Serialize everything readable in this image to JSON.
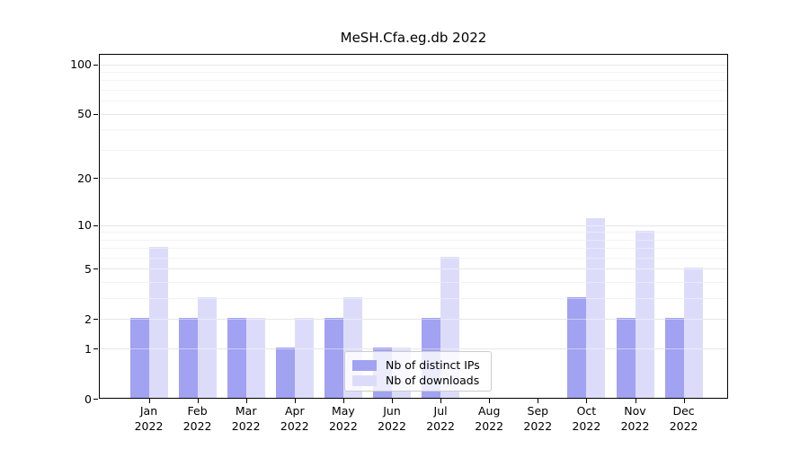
{
  "chart_data": {
    "type": "bar",
    "title": "MeSH.Cfa.eg.db 2022",
    "categories": [
      "Jan 2022",
      "Feb 2022",
      "Mar 2022",
      "Apr 2022",
      "May 2022",
      "Jun 2022",
      "Jul 2022",
      "Aug 2022",
      "Sep 2022",
      "Oct 2022",
      "Nov 2022",
      "Dec 2022"
    ],
    "series": [
      {
        "name": "Nb of distinct IPs",
        "color": "#a2a2f2",
        "values": [
          2,
          2,
          2,
          1,
          2,
          1,
          2,
          0,
          0,
          3,
          2,
          2
        ]
      },
      {
        "name": "Nb of downloads",
        "color": "#dcdcfa",
        "values": [
          7,
          3,
          2,
          2,
          3,
          1,
          6,
          0,
          0,
          11,
          9,
          5
        ]
      }
    ],
    "y_axis": {
      "scale": "log10(1+v)",
      "major_ticks": [
        0,
        1,
        2,
        5,
        10,
        20,
        50,
        100
      ],
      "minor_gridlines": [
        3,
        4,
        6,
        7,
        8,
        9,
        30,
        40,
        60,
        70,
        80,
        90
      ],
      "ylim": [
        0,
        116
      ]
    },
    "legend": {
      "position": "lower center"
    },
    "grid": true,
    "colors": {
      "axis": "#000000",
      "major_grid": "#d2d2d2",
      "minor_grid": "#ececec",
      "background": "#ffffff"
    }
  }
}
